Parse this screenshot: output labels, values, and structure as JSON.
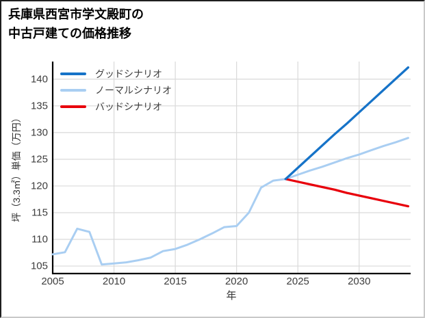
{
  "chart_data": {
    "type": "line",
    "title": "兵庫県西宮市学文殿町の中古戸建ての価格推移",
    "title_lines": [
      "兵庫県西宮市学文殿町の",
      "中古戸建ての価格推移"
    ],
    "xlabel": "年",
    "ylabel": "坪（3.3㎡）単価（万円）",
    "x_ticks": [
      2005,
      2010,
      2015,
      2020,
      2025,
      2030
    ],
    "y_ticks": [
      105,
      110,
      115,
      120,
      125,
      130,
      135,
      140
    ],
    "xlim": [
      2005,
      2034.2
    ],
    "ylim": [
      103.6,
      143.3
    ],
    "grid": true,
    "legend_position": "upper-left",
    "background_color": "#ffffff",
    "gridline_color": "#d9d9d9",
    "axis_color": "#000000",
    "tick_label_color": "#3d3d3d",
    "series": [
      {
        "name": "グッドシナリオ",
        "color": "#1673c8",
        "x": [
          2024,
          2025,
          2026,
          2027,
          2028,
          2029,
          2030,
          2031,
          2032,
          2033,
          2034
        ],
        "values": [
          121.3,
          123.4,
          125.5,
          127.6,
          129.7,
          131.7,
          133.8,
          135.9,
          138.0,
          140.1,
          142.2
        ]
      },
      {
        "name": "ノーマルシナリオ",
        "color": "#a9cef2",
        "x": [
          2005,
          2006,
          2007,
          2008,
          2009,
          2010,
          2011,
          2012,
          2013,
          2014,
          2015,
          2016,
          2017,
          2018,
          2019,
          2020,
          2021,
          2022,
          2023,
          2024,
          2025,
          2026,
          2027,
          2028,
          2029,
          2030,
          2031,
          2032,
          2033,
          2034
        ],
        "values": [
          107.2,
          107.6,
          112.0,
          111.4,
          105.3,
          105.5,
          105.7,
          106.1,
          106.6,
          107.8,
          108.2,
          109.0,
          110.0,
          111.1,
          112.3,
          112.5,
          115.0,
          119.7,
          121.0,
          121.3,
          122.1,
          122.9,
          123.6,
          124.4,
          125.2,
          125.9,
          126.7,
          127.5,
          128.2,
          129.0
        ]
      },
      {
        "name": "バッドシナリオ",
        "color": "#e8000b",
        "x": [
          2024,
          2025,
          2026,
          2027,
          2028,
          2029,
          2030,
          2031,
          2032,
          2033,
          2034
        ],
        "values": [
          121.3,
          120.8,
          120.3,
          119.8,
          119.3,
          118.7,
          118.2,
          117.7,
          117.2,
          116.7,
          116.2
        ]
      }
    ]
  }
}
